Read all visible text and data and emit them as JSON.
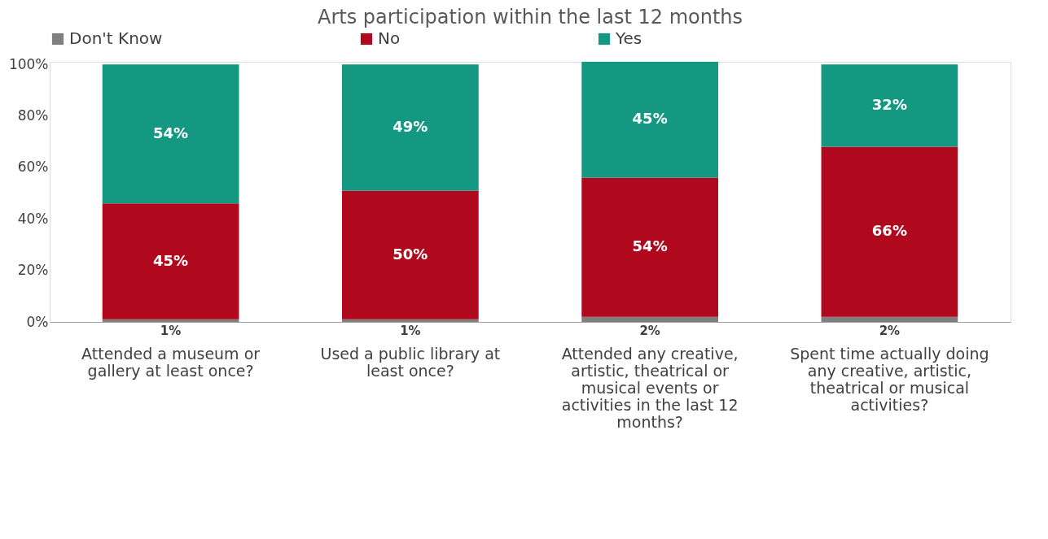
{
  "chart_data": {
    "type": "bar",
    "title": "Arts participation within the last 12 months",
    "categories": [
      "Attended a museum or gallery at least once?",
      "Used a public library at least once?",
      "Attended any creative, artistic, theatrical or musical events or activities in the last 12 months?",
      "Spent time actually doing any creative, artistic, theatrical or musical activities?"
    ],
    "stacked": true,
    "series": [
      {
        "name": "Don't Know",
        "color": "#7f7f7f",
        "values": [
          1,
          1,
          2,
          2
        ],
        "value_labels": [
          "1%",
          "1%",
          "2%",
          "2%"
        ]
      },
      {
        "name": "No",
        "color": "#b0091e",
        "values": [
          45,
          50,
          54,
          66
        ],
        "value_labels": [
          "45%",
          "50%",
          "54%",
          "66%"
        ]
      },
      {
        "name": "Yes",
        "color": "#149881",
        "values": [
          54,
          49,
          45,
          32
        ],
        "value_labels": [
          "54%",
          "49%",
          "45%",
          "32%"
        ]
      }
    ],
    "ylim": [
      0,
      101
    ],
    "yticks": [
      {
        "value": 0,
        "label": "0%"
      },
      {
        "value": 20,
        "label": "20%"
      },
      {
        "value": 40,
        "label": "40%"
      },
      {
        "value": 60,
        "label": "60%"
      },
      {
        "value": 80,
        "label": "80%"
      },
      {
        "value": 100,
        "label": "100%"
      }
    ],
    "grid": false,
    "legend": "top"
  }
}
